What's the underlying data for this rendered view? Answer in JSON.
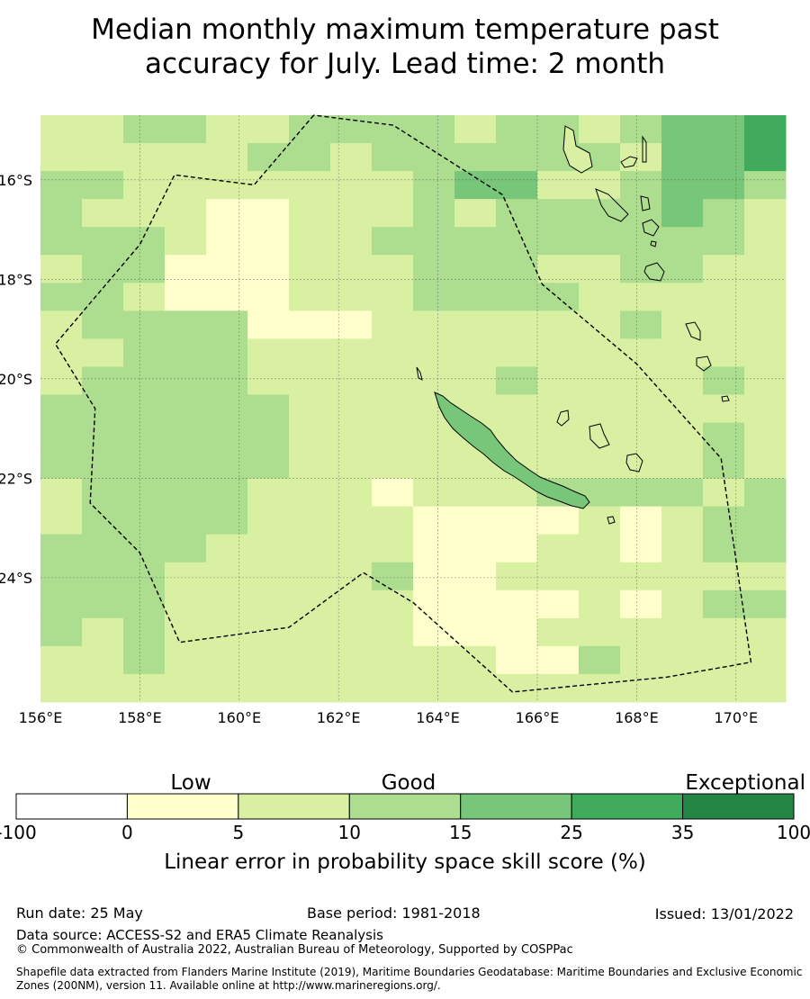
{
  "title_line1": "Median monthly maximum temperature past",
  "title_line2": "accuracy for July. Lead time: 2 month",
  "map": {
    "lon_range": [
      156,
      171
    ],
    "lat_range": [
      -26.5,
      -14.7
    ],
    "lon_labels": [
      "156°E",
      "158°E",
      "160°E",
      "162°E",
      "164°E",
      "166°E",
      "168°E",
      "170°E"
    ],
    "lon_values": [
      156,
      158,
      160,
      162,
      164,
      166,
      168,
      170
    ],
    "lat_labels": [
      "16°S",
      "18°S",
      "20°S",
      "22°S",
      "24°S"
    ],
    "lat_values": [
      -16,
      -18,
      -20,
      -22,
      -24
    ],
    "grid_lines": true,
    "cells_cols": 18,
    "cells_rows": 21,
    "cells": [
      "223322333323323445",
      "222223323333332445",
      "332222222344223443",
      "322211222323333432",
      "333211223333333332",
      "233111222333223322",
      "332111222333322222",
      "233331112222223222",
      "223332222222222222",
      "233332222223222232",
      "333333222222222222",
      "333333222222222232",
      "333333222222222232",
      "233332221222333323",
      "233332222111121233",
      "333322222111221233",
      "333222223112222222",
      "333222222111121233",
      "323222222111222222",
      "223222222221132222",
      "222222222222222222"
    ],
    "eez_boundary": [
      [
        161.5,
        -14.7
      ],
      [
        160.3,
        -16.1
      ],
      [
        158.7,
        -15.9
      ],
      [
        158.0,
        -17.3
      ],
      [
        156.3,
        -19.3
      ],
      [
        157.1,
        -20.6
      ],
      [
        157.0,
        -22.5
      ],
      [
        158.0,
        -23.5
      ],
      [
        158.8,
        -25.3
      ],
      [
        161.0,
        -25.0
      ],
      [
        162.5,
        -23.9
      ],
      [
        163.5,
        -24.5
      ],
      [
        165.5,
        -26.3
      ],
      [
        168.6,
        -26.0
      ],
      [
        170.3,
        -25.7
      ],
      [
        169.7,
        -21.6
      ],
      [
        168.0,
        -19.7
      ],
      [
        166.1,
        -18.1
      ],
      [
        165.3,
        -16.3
      ],
      [
        163.1,
        -14.9
      ],
      [
        161.5,
        -14.7
      ]
    ]
  },
  "legend": {
    "category_labels": [
      "Low",
      "Good",
      "Exceptional"
    ],
    "bins": [
      {
        "from": "-100",
        "to": "0",
        "color": "#ffffff"
      },
      {
        "from": "0",
        "to": "5",
        "color": "#ffffcc"
      },
      {
        "from": "5",
        "to": "10",
        "color": "#d9f0a3"
      },
      {
        "from": "10",
        "to": "15",
        "color": "#addd8e"
      },
      {
        "from": "15",
        "to": "25",
        "color": "#78c679"
      },
      {
        "from": "25",
        "to": "35",
        "color": "#41ab5d"
      },
      {
        "from": "35",
        "to": "100",
        "color": "#238443"
      }
    ],
    "tick_labels": [
      "-100",
      "0",
      "5",
      "10",
      "15",
      "25",
      "35",
      "100"
    ],
    "title": "Linear error in probability space skill score (%)"
  },
  "footer": {
    "run_date": "Run date: 25 May",
    "base_period": "Base period: 1981-2018",
    "issued": "Issued: 13/01/2022",
    "data_source": "Data source: ACCESS-S2 and ERA5 Climate Reanalysis",
    "copyright": "© Commonwealth of Australia 2022, Australian Bureau of Meteorology, Supported by COSPPac",
    "shapefile_line1": "Shapefile data extracted from Flanders Marine Institute (2019), Maritime Boundaries Geodatabase: Maritime Boundaries and Exclusive Economic",
    "shapefile_line2": "Zones (200NM), version 11. Available online at http://www.marineregions.org/."
  }
}
